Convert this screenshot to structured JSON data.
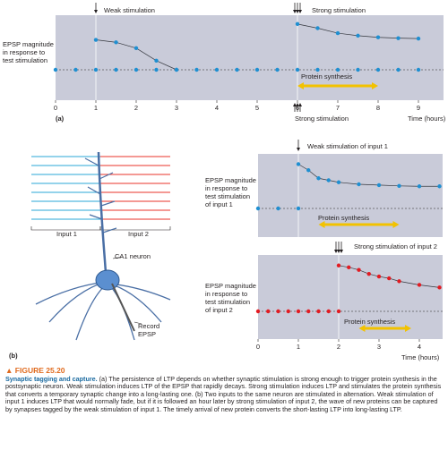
{
  "chart_data": [
    {
      "type": "line",
      "panel": "(a)",
      "ylabel": "EPSP magnitude in response to test stimulation",
      "xlabel": "Time (hours)",
      "xlim": [
        0,
        9.6
      ],
      "xticks": [
        "0",
        "1",
        "2",
        "3",
        "4",
        "5",
        "6",
        "7",
        "8",
        "9"
      ],
      "annotations": {
        "weak": "Weak stimulation",
        "strong_top": "Strong stimulation",
        "strong_bottom": "Strong stimulation",
        "protein": "Protein synthesis"
      },
      "baseline": {
        "x": [
          0,
          0.5,
          1,
          1.5,
          2,
          2.5,
          3,
          3.5,
          4,
          4.5,
          5,
          5.5,
          6,
          6.5,
          7,
          7.5,
          8,
          8.5,
          9
        ],
        "y": [
          1,
          1,
          1,
          1,
          1,
          1,
          1,
          1,
          1,
          1,
          1,
          1,
          1,
          1,
          1,
          1,
          1,
          1,
          1
        ]
      },
      "series": [
        {
          "x": [
            1,
            1.5,
            2,
            2.5,
            3
          ],
          "y": [
            1.72,
            1.66,
            1.52,
            1.22,
            1.0
          ]
        },
        {
          "x": [
            6,
            6.5,
            7,
            7.5,
            8,
            8.5,
            9
          ],
          "y": [
            2.1,
            2.0,
            1.88,
            1.82,
            1.78,
            1.76,
            1.75
          ]
        }
      ],
      "colors": {
        "panel_bg": "#c9cbd9",
        "points": "#1f8fd1",
        "arrow": "#f2c200",
        "line": "#33363d"
      }
    },
    {
      "type": "line",
      "panel": "(b) input 1",
      "ylabel": "EPSP magnitude in response to test stimulation of input 1",
      "xlim": [
        0,
        4.5
      ],
      "annotations": {
        "stim": "Weak stimulation of input 1",
        "protein": "Protein synthesis"
      },
      "baseline": {
        "x": [
          0,
          0.5,
          1
        ],
        "y": [
          1,
          1,
          1
        ]
      },
      "series": [
        {
          "x": [
            1,
            1.25,
            1.5,
            1.75,
            2,
            2.5,
            3,
            3.5,
            4,
            4.5
          ],
          "y": [
            2.1,
            1.95,
            1.75,
            1.7,
            1.65,
            1.6,
            1.58,
            1.56,
            1.55,
            1.55
          ]
        }
      ],
      "colors": {
        "points": "#1f8fd1"
      }
    },
    {
      "type": "line",
      "panel": "(b) input 2",
      "ylabel": "EPSP magnitude in response to test stimulation of input 2",
      "xlabel": "Time (hours)",
      "xlim": [
        0,
        4.5
      ],
      "xticks": [
        "0",
        "1",
        "2",
        "3",
        "4"
      ],
      "annotations": {
        "stim": "Strong stimulation of input 2",
        "protein": "Protein synthesis"
      },
      "baseline": {
        "x": [
          0,
          0.25,
          0.5,
          0.75,
          1,
          1.25,
          1.5,
          1.75,
          2
        ],
        "y": [
          1,
          1,
          1,
          1,
          1,
          1,
          1,
          1,
          1
        ]
      },
      "series": [
        {
          "x": [
            2,
            2.25,
            2.5,
            2.75,
            3,
            3.25,
            3.5,
            4,
            4.5
          ],
          "y": [
            2.25,
            2.2,
            2.13,
            2.02,
            1.95,
            1.9,
            1.82,
            1.72,
            1.65
          ]
        }
      ],
      "colors": {
        "points": "#e21b22"
      }
    }
  ],
  "neuron": {
    "input1_label": "Input 1",
    "input2_label": "Input 2",
    "ca1_label": "CA1 neuron",
    "record_label": "Record\nEPSP",
    "panel_label": "(b)",
    "colors": {
      "input1": "#2aa7d7",
      "input2": "#e8332a",
      "cell": "#5b8fd0"
    }
  },
  "caption": {
    "figure_label": "▲ FIGURE 25.20",
    "title": "Synaptic tagging and capture.",
    "body": " (a) The persistence of LTP depends on whether synaptic stimulation is strong enough to trigger protein synthesis in the postsynaptic neuron. Weak stimulation induces LTP of the EPSP that rapidly decays. Strong stimulation induces LTP and stimulates the protein synthesis that converts a temporary synaptic change into a long-lasting one. (b) Two inputs to the same neuron are stimulated in alternation. Weak stimulation of input 1 induces LTP that would normally fade, but if it is followed an hour later by strong stimulation of input 2, the wave of new proteins can be captured by synapses tagged by the weak stimulation of input 1. The timely arrival of new protein converts the short-lasting LTP into long-lasting LTP."
  }
}
